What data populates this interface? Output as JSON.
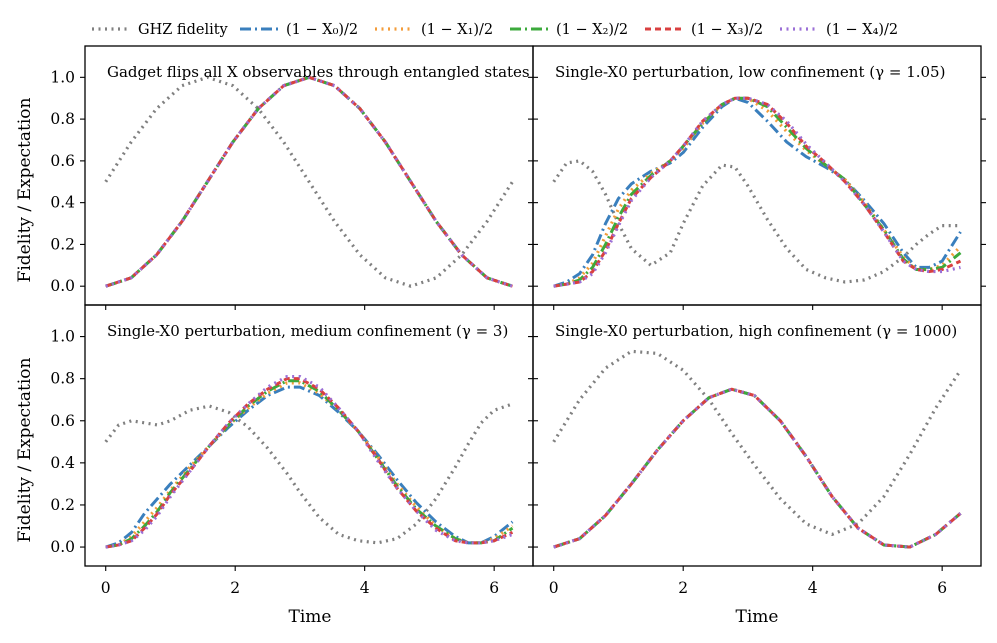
{
  "legend": {
    "entries": [
      {
        "key": "ghz",
        "label": "GHZ fidelity",
        "color": "#808080",
        "dash": "dot"
      },
      {
        "key": "x0",
        "label": "(1 − X₀)/2",
        "color": "#3a7fbd",
        "dash": "dashdot"
      },
      {
        "key": "x1",
        "label": "(1 − X₁)/2",
        "color": "#f39c3a",
        "dash": "dot"
      },
      {
        "key": "x2",
        "label": "(1 − X₂)/2",
        "color": "#3caa3c",
        "dash": "dashdot"
      },
      {
        "key": "x3",
        "label": "(1 − X₃)/2",
        "color": "#d94040",
        "dash": "dash"
      },
      {
        "key": "x4",
        "label": "(1 − X₄)/2",
        "color": "#9b6fd6",
        "dash": "dot"
      }
    ]
  },
  "shared": {
    "xlabel": "Time",
    "ylabel": "Fidelity / Expectation",
    "xlim": [
      -0.32,
      6.6
    ],
    "ylim": [
      -0.09,
      1.15
    ],
    "xticks": [
      0,
      2,
      4,
      6
    ],
    "yticks": [
      0.0,
      0.2,
      0.4,
      0.6,
      0.8,
      1.0
    ],
    "xtick_labels": [
      "0",
      "2",
      "4",
      "6"
    ],
    "ytick_labels": [
      "0.0",
      "0.2",
      "0.4",
      "0.6",
      "0.8",
      "1.0"
    ]
  },
  "chart_data": [
    {
      "type": "line",
      "title": "Gadget flips all X observables through entangled states",
      "x": [
        0,
        0.3927,
        0.7854,
        1.1781,
        1.5708,
        1.9635,
        2.3562,
        2.7489,
        3.1416,
        3.5343,
        3.927,
        4.3197,
        4.7124,
        5.1051,
        5.4978,
        5.8905,
        6.2832
      ],
      "series": [
        {
          "name": "GHZ fidelity",
          "values": [
            0.5,
            0.69,
            0.85,
            0.96,
            1.0,
            0.96,
            0.85,
            0.69,
            0.5,
            0.31,
            0.15,
            0.04,
            0.0,
            0.04,
            0.15,
            0.31,
            0.5
          ]
        },
        {
          "name": "(1 − X0)/2",
          "values": [
            0.0,
            0.04,
            0.15,
            0.31,
            0.5,
            0.69,
            0.85,
            0.96,
            1.0,
            0.96,
            0.85,
            0.69,
            0.5,
            0.31,
            0.15,
            0.04,
            0.0
          ]
        },
        {
          "name": "(1 − X1)/2",
          "values": [
            0.0,
            0.04,
            0.15,
            0.31,
            0.5,
            0.69,
            0.85,
            0.96,
            1.0,
            0.96,
            0.85,
            0.69,
            0.5,
            0.31,
            0.15,
            0.04,
            0.0
          ]
        },
        {
          "name": "(1 − X2)/2",
          "values": [
            0.0,
            0.04,
            0.15,
            0.31,
            0.5,
            0.69,
            0.85,
            0.96,
            1.0,
            0.96,
            0.85,
            0.69,
            0.5,
            0.31,
            0.15,
            0.04,
            0.0
          ]
        },
        {
          "name": "(1 − X3)/2",
          "values": [
            0.0,
            0.04,
            0.15,
            0.31,
            0.5,
            0.69,
            0.85,
            0.96,
            1.0,
            0.96,
            0.85,
            0.69,
            0.5,
            0.31,
            0.15,
            0.04,
            0.0
          ]
        },
        {
          "name": "(1 − X4)/2",
          "values": [
            0.0,
            0.04,
            0.15,
            0.31,
            0.5,
            0.69,
            0.85,
            0.96,
            1.0,
            0.96,
            0.85,
            0.69,
            0.5,
            0.31,
            0.15,
            0.04,
            0.0
          ]
        }
      ]
    },
    {
      "type": "line",
      "title": "Single-X0 perturbation, low confinement (γ = 1.05)",
      "x": [
        0,
        0.2,
        0.4,
        0.6,
        0.8,
        1.0,
        1.2,
        1.5,
        1.8,
        2.0,
        2.3,
        2.6,
        2.8,
        3.0,
        3.3,
        3.6,
        3.9,
        4.2,
        4.5,
        4.8,
        5.1,
        5.4,
        5.6,
        5.8,
        6.0,
        6.2832
      ],
      "series": [
        {
          "name": "GHZ fidelity",
          "values": [
            0.5,
            0.59,
            0.6,
            0.55,
            0.44,
            0.3,
            0.18,
            0.1,
            0.16,
            0.3,
            0.48,
            0.58,
            0.57,
            0.48,
            0.32,
            0.18,
            0.08,
            0.04,
            0.02,
            0.03,
            0.07,
            0.14,
            0.2,
            0.25,
            0.29,
            0.29
          ]
        },
        {
          "name": "(1 − X0)/2",
          "values": [
            0.0,
            0.02,
            0.06,
            0.15,
            0.3,
            0.42,
            0.49,
            0.55,
            0.59,
            0.64,
            0.76,
            0.86,
            0.9,
            0.88,
            0.79,
            0.69,
            0.62,
            0.57,
            0.51,
            0.41,
            0.3,
            0.16,
            0.09,
            0.09,
            0.12,
            0.26
          ]
        },
        {
          "name": "(1 − X1)/2",
          "values": [
            0.0,
            0.01,
            0.04,
            0.11,
            0.24,
            0.37,
            0.46,
            0.54,
            0.6,
            0.66,
            0.78,
            0.87,
            0.9,
            0.9,
            0.84,
            0.74,
            0.65,
            0.58,
            0.51,
            0.4,
            0.27,
            0.14,
            0.08,
            0.08,
            0.1,
            0.19
          ]
        },
        {
          "name": "(1 − X2)/2",
          "values": [
            0.0,
            0.01,
            0.03,
            0.09,
            0.2,
            0.33,
            0.44,
            0.53,
            0.6,
            0.67,
            0.78,
            0.87,
            0.9,
            0.9,
            0.86,
            0.76,
            0.66,
            0.58,
            0.51,
            0.39,
            0.27,
            0.13,
            0.08,
            0.08,
            0.09,
            0.16
          ]
        },
        {
          "name": "(1 − X3)/2",
          "values": [
            0.0,
            0.01,
            0.02,
            0.07,
            0.17,
            0.3,
            0.42,
            0.52,
            0.6,
            0.67,
            0.79,
            0.87,
            0.9,
            0.9,
            0.87,
            0.78,
            0.67,
            0.59,
            0.5,
            0.39,
            0.26,
            0.12,
            0.08,
            0.07,
            0.08,
            0.12
          ]
        },
        {
          "name": "(1 − X4)/2",
          "values": [
            0.0,
            0.01,
            0.02,
            0.06,
            0.16,
            0.29,
            0.41,
            0.52,
            0.6,
            0.67,
            0.79,
            0.87,
            0.9,
            0.9,
            0.87,
            0.79,
            0.68,
            0.59,
            0.5,
            0.39,
            0.26,
            0.12,
            0.08,
            0.07,
            0.07,
            0.09
          ]
        }
      ]
    },
    {
      "type": "line",
      "title": "Single-X0 perturbation, medium confinement (γ = 3)",
      "x": [
        0,
        0.2,
        0.4,
        0.6,
        0.8,
        1.0,
        1.3,
        1.6,
        1.9,
        2.2,
        2.5,
        2.8,
        3.0,
        3.3,
        3.6,
        3.9,
        4.2,
        4.5,
        4.8,
        5.1,
        5.4,
        5.6,
        5.8,
        6.0,
        6.2832
      ],
      "series": [
        {
          "name": "GHZ fidelity",
          "values": [
            0.5,
            0.58,
            0.6,
            0.59,
            0.58,
            0.6,
            0.65,
            0.67,
            0.64,
            0.57,
            0.47,
            0.35,
            0.26,
            0.14,
            0.06,
            0.03,
            0.02,
            0.04,
            0.11,
            0.23,
            0.38,
            0.49,
            0.59,
            0.65,
            0.68
          ]
        },
        {
          "name": "(1 − X0)/2",
          "values": [
            0.0,
            0.02,
            0.07,
            0.16,
            0.23,
            0.3,
            0.39,
            0.48,
            0.57,
            0.65,
            0.72,
            0.76,
            0.76,
            0.72,
            0.64,
            0.55,
            0.44,
            0.32,
            0.21,
            0.12,
            0.05,
            0.02,
            0.02,
            0.05,
            0.12
          ]
        },
        {
          "name": "(1 − X1)/2",
          "values": [
            0.0,
            0.01,
            0.05,
            0.12,
            0.19,
            0.27,
            0.38,
            0.48,
            0.58,
            0.66,
            0.73,
            0.78,
            0.78,
            0.73,
            0.65,
            0.55,
            0.43,
            0.3,
            0.19,
            0.1,
            0.04,
            0.02,
            0.02,
            0.04,
            0.1
          ]
        },
        {
          "name": "(1 − X2)/2",
          "values": [
            0.0,
            0.01,
            0.04,
            0.1,
            0.17,
            0.26,
            0.37,
            0.48,
            0.58,
            0.67,
            0.74,
            0.79,
            0.79,
            0.74,
            0.65,
            0.55,
            0.42,
            0.29,
            0.18,
            0.1,
            0.04,
            0.02,
            0.02,
            0.03,
            0.09
          ]
        },
        {
          "name": "(1 − X3)/2",
          "values": [
            0.0,
            0.01,
            0.03,
            0.09,
            0.16,
            0.25,
            0.36,
            0.48,
            0.59,
            0.68,
            0.75,
            0.8,
            0.8,
            0.75,
            0.66,
            0.55,
            0.42,
            0.28,
            0.17,
            0.09,
            0.03,
            0.02,
            0.02,
            0.03,
            0.07
          ]
        },
        {
          "name": "(1 − X4)/2",
          "values": [
            0.0,
            0.01,
            0.03,
            0.08,
            0.15,
            0.24,
            0.36,
            0.48,
            0.59,
            0.68,
            0.76,
            0.81,
            0.81,
            0.76,
            0.66,
            0.55,
            0.41,
            0.28,
            0.17,
            0.08,
            0.03,
            0.02,
            0.02,
            0.03,
            0.06
          ]
        }
      ]
    },
    {
      "type": "line",
      "title": "Single-X0 perturbation, high confinement (γ = 1000)",
      "x": [
        0,
        0.4,
        0.8,
        1.2,
        1.6,
        2.0,
        2.4,
        2.75,
        3.1,
        3.5,
        3.9,
        4.3,
        4.7,
        5.1,
        5.5,
        5.9,
        6.2832
      ],
      "series": [
        {
          "name": "GHZ fidelity",
          "values": [
            0.5,
            0.7,
            0.85,
            0.93,
            0.92,
            0.84,
            0.7,
            0.54,
            0.39,
            0.23,
            0.11,
            0.06,
            0.11,
            0.24,
            0.44,
            0.66,
            0.84
          ]
        },
        {
          "name": "(1 − X0)/2",
          "values": [
            0.0,
            0.04,
            0.15,
            0.3,
            0.46,
            0.6,
            0.71,
            0.75,
            0.72,
            0.6,
            0.43,
            0.24,
            0.09,
            0.01,
            0.0,
            0.06,
            0.16
          ]
        },
        {
          "name": "(1 − X1)/2",
          "values": [
            0.0,
            0.04,
            0.15,
            0.3,
            0.46,
            0.6,
            0.71,
            0.75,
            0.72,
            0.6,
            0.43,
            0.24,
            0.09,
            0.01,
            0.0,
            0.06,
            0.16
          ]
        },
        {
          "name": "(1 − X2)/2",
          "values": [
            0.0,
            0.04,
            0.15,
            0.3,
            0.46,
            0.6,
            0.71,
            0.75,
            0.72,
            0.6,
            0.43,
            0.24,
            0.09,
            0.01,
            0.0,
            0.06,
            0.16
          ]
        },
        {
          "name": "(1 − X3)/2",
          "values": [
            0.0,
            0.04,
            0.15,
            0.3,
            0.46,
            0.6,
            0.71,
            0.75,
            0.72,
            0.6,
            0.43,
            0.24,
            0.09,
            0.01,
            0.0,
            0.06,
            0.16
          ]
        },
        {
          "name": "(1 − X4)/2",
          "values": [
            0.0,
            0.04,
            0.15,
            0.3,
            0.46,
            0.6,
            0.71,
            0.75,
            0.72,
            0.6,
            0.43,
            0.24,
            0.09,
            0.01,
            0.0,
            0.06,
            0.16
          ]
        }
      ]
    }
  ]
}
